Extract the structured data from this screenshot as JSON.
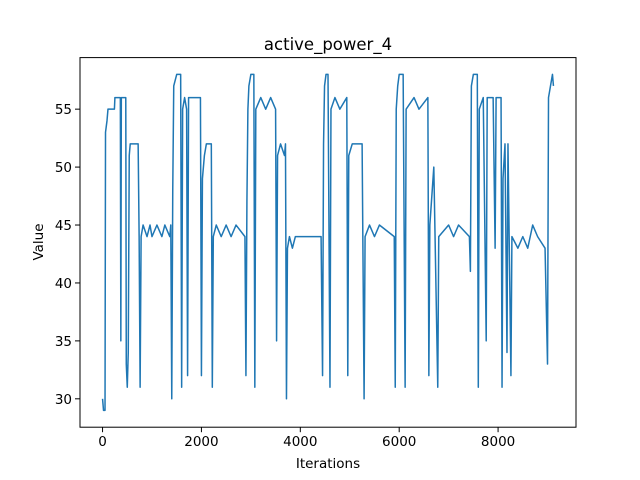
{
  "chart_data": {
    "type": "line",
    "title": "active_power_4",
    "x_label": "Iterations",
    "y_label": "Value",
    "x": [
      0,
      20,
      50,
      60,
      90,
      110,
      240,
      250,
      360,
      370,
      380,
      470,
      480,
      500,
      520,
      540,
      560,
      720,
      740,
      760,
      780,
      820,
      900,
      960,
      1000,
      1100,
      1200,
      1260,
      1360,
      1380,
      1400,
      1420,
      1440,
      1500,
      1580,
      1600,
      1620,
      1660,
      1700,
      1720,
      1740,
      1980,
      2000,
      2020,
      2060,
      2100,
      2200,
      2220,
      2240,
      2300,
      2400,
      2500,
      2600,
      2700,
      2880,
      2900,
      2920,
      2940,
      2960,
      3000,
      3060,
      3080,
      3100,
      3200,
      3300,
      3400,
      3500,
      3520,
      3540,
      3600,
      3680,
      3700,
      3720,
      3740,
      3780,
      3840,
      3900,
      4420,
      4450,
      4470,
      4490,
      4520,
      4560,
      4600,
      4620,
      4700,
      4800,
      4940,
      4960,
      4980,
      5050,
      5250,
      5290,
      5310,
      5400,
      5500,
      5600,
      5900,
      5920,
      5940,
      5970,
      6000,
      6080,
      6120,
      6140,
      6300,
      6400,
      6580,
      6600,
      6620,
      6700,
      6780,
      6800,
      7000,
      7100,
      7200,
      7420,
      7440,
      7460,
      7500,
      7580,
      7600,
      7620,
      7700,
      7760,
      7780,
      7900,
      7940,
      7960,
      8060,
      8080,
      8100,
      8140,
      8180,
      8200,
      8260,
      8280,
      8400,
      8500,
      8600,
      8700,
      8800,
      8950,
      9000,
      9020,
      9060,
      9100,
      9120
    ],
    "series": [
      {
        "color": "#1f77b4",
        "values": [
          30,
          29,
          29,
          53,
          54,
          55,
          55,
          56,
          56,
          35,
          56,
          56,
          33,
          31,
          34,
          51,
          52,
          52,
          44,
          31,
          44,
          45,
          44,
          45,
          44,
          45,
          44,
          45,
          44,
          45,
          30,
          48,
          57,
          58,
          58,
          31,
          55,
          56,
          55,
          32,
          56,
          56,
          32,
          49,
          51,
          52,
          52,
          31,
          44,
          45,
          44,
          45,
          44,
          45,
          44,
          32,
          47,
          55,
          57,
          58,
          58,
          31,
          55,
          56,
          55,
          56,
          55,
          35,
          51,
          52,
          51,
          52,
          30,
          43,
          44,
          43,
          44,
          44,
          32,
          52,
          57,
          58,
          58,
          31,
          55,
          56,
          55,
          56,
          32,
          51,
          52,
          52,
          30,
          44,
          45,
          44,
          45,
          44,
          31,
          55,
          57,
          58,
          58,
          31,
          55,
          56,
          55,
          56,
          32,
          45,
          50,
          31,
          44,
          45,
          44,
          45,
          44,
          41,
          57,
          58,
          58,
          31,
          55,
          56,
          35,
          56,
          56,
          43,
          56,
          56,
          31,
          49,
          52,
          34,
          52,
          32,
          44,
          43,
          44,
          43,
          45,
          44,
          43,
          33,
          56,
          57,
          58,
          57
        ]
      }
    ],
    "xlim": [
      -456,
      9576
    ],
    "ylim": [
      27.55,
      59.45
    ],
    "xticks": [
      0,
      2000,
      4000,
      6000,
      8000
    ],
    "yticks": [
      30,
      35,
      40,
      45,
      50,
      55
    ]
  }
}
